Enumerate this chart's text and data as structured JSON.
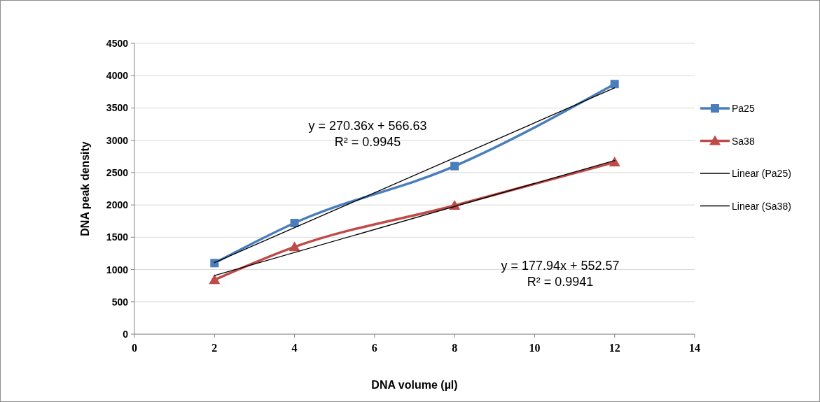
{
  "chart_data": {
    "type": "line",
    "xlabel": "DNA volume (µl)",
    "ylabel": "DNA peak density",
    "xlim": [
      0,
      14
    ],
    "xticks": [
      0,
      2,
      4,
      6,
      8,
      10,
      12,
      14
    ],
    "ylim": [
      0,
      4500
    ],
    "yticks": [
      0,
      500,
      1000,
      1500,
      2000,
      2500,
      3000,
      3500,
      4000,
      4500
    ],
    "grid": "y",
    "legend": "right",
    "series": [
      {
        "name": "Pa25",
        "color": "#4a7ebb",
        "x": [
          2,
          4,
          8,
          12
        ],
        "values": [
          1100,
          1720,
          2600,
          3870
        ],
        "marker": "square"
      },
      {
        "name": "Sa38",
        "color": "#be4b48",
        "x": [
          2,
          4,
          8,
          12
        ],
        "values": [
          840,
          1350,
          1990,
          2660
        ],
        "marker": "triangle"
      },
      {
        "name": "Linear (Pa25)",
        "color": "#000000",
        "x": [
          2,
          12
        ],
        "values": [
          1107,
          3811
        ],
        "marker": "none"
      },
      {
        "name": "Linear (Sa38)",
        "color": "#000000",
        "x": [
          2,
          12
        ],
        "values": [
          908,
          2688
        ],
        "marker": "none"
      }
    ],
    "annotations": [
      "y = 270.36x + 566.63\nR² = 0.9945",
      "y = 177.94x + 552.57\nR² = 0.9941"
    ]
  }
}
